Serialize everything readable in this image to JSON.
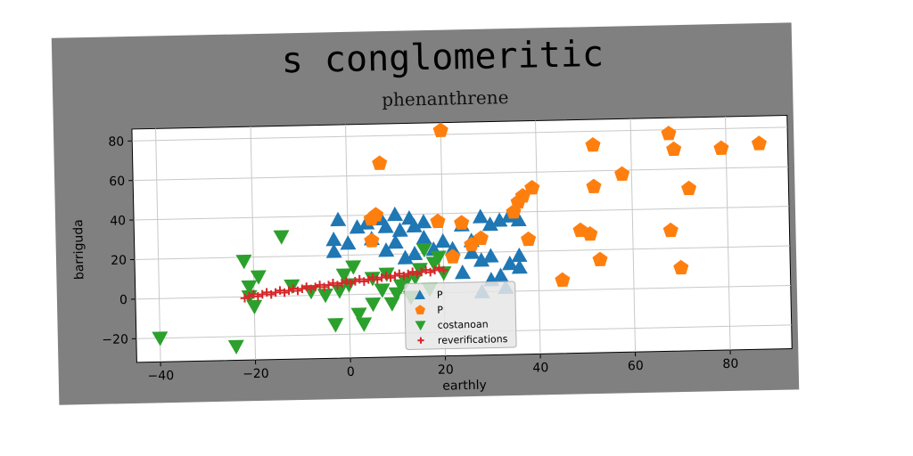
{
  "colors": {
    "figure_bg": "#808080",
    "plot_bg": "#ffffff",
    "grid": "#c8c8c8",
    "series_blue": "#1f77b4",
    "series_orange": "#ff7f0e",
    "series_green": "#2ca02c",
    "series_red": "#d62728"
  },
  "chart_data": {
    "type": "scatter",
    "title": "s conglomeritic",
    "subtitle": "phenanthrene",
    "xlabel": "earthly",
    "ylabel": "barriguda",
    "xlim": [
      -45,
      93
    ],
    "ylim": [
      -32,
      86
    ],
    "xticks": [
      -40,
      -20,
      0,
      20,
      40,
      60,
      80
    ],
    "yticks": [
      -20,
      0,
      20,
      40,
      60,
      80
    ],
    "grid": true,
    "legend_position": "lower-center",
    "series": [
      {
        "name": "P",
        "marker": "triangle-up",
        "color": "#1f77b4",
        "points": [
          [
            -2,
            38
          ],
          [
            -3,
            28
          ],
          [
            -3,
            22
          ],
          [
            0,
            26
          ],
          [
            2,
            34
          ],
          [
            4,
            36
          ],
          [
            5,
            28
          ],
          [
            7,
            38
          ],
          [
            8,
            34
          ],
          [
            10,
            40
          ],
          [
            11,
            32
          ],
          [
            13,
            38
          ],
          [
            14,
            34
          ],
          [
            16,
            36
          ],
          [
            18,
            22
          ],
          [
            20,
            26
          ],
          [
            24,
            34
          ],
          [
            26,
            26
          ],
          [
            28,
            38
          ],
          [
            30,
            34
          ],
          [
            32,
            36
          ],
          [
            34,
            38
          ],
          [
            36,
            36
          ],
          [
            8,
            22
          ],
          [
            10,
            26
          ],
          [
            12,
            18
          ],
          [
            14,
            20
          ],
          [
            16,
            28
          ],
          [
            22,
            22
          ],
          [
            26,
            20
          ],
          [
            28,
            16
          ],
          [
            30,
            18
          ],
          [
            34,
            14
          ],
          [
            36,
            18
          ],
          [
            36,
            12
          ],
          [
            24,
            10
          ],
          [
            30,
            6
          ],
          [
            33,
            2
          ],
          [
            28,
            0
          ],
          [
            32,
            8
          ]
        ]
      },
      {
        "name": "P",
        "marker": "pentagon",
        "color": "#ff7f0e",
        "points": [
          [
            7,
            66
          ],
          [
            20,
            82
          ],
          [
            5,
            38
          ],
          [
            6,
            40
          ],
          [
            5,
            27
          ],
          [
            19,
            36
          ],
          [
            24,
            35
          ],
          [
            26,
            24
          ],
          [
            28,
            27
          ],
          [
            22,
            18
          ],
          [
            36,
            45
          ],
          [
            37,
            48
          ],
          [
            39,
            52
          ],
          [
            35,
            40
          ],
          [
            38,
            26
          ],
          [
            45,
            5
          ],
          [
            49,
            30
          ],
          [
            51,
            28
          ],
          [
            52,
            52
          ],
          [
            52,
            73
          ],
          [
            53,
            15
          ],
          [
            58,
            58
          ],
          [
            68,
            78
          ],
          [
            69,
            70
          ],
          [
            68,
            29
          ],
          [
            70,
            10
          ],
          [
            72,
            50
          ],
          [
            79,
            70
          ],
          [
            87,
            72
          ]
        ]
      },
      {
        "name": "costanoan",
        "marker": "triangle-down",
        "color": "#2ca02c",
        "points": [
          [
            -40,
            -20
          ],
          [
            -24,
            -25
          ],
          [
            -22,
            18
          ],
          [
            -21,
            5
          ],
          [
            -21,
            0
          ],
          [
            -20,
            -5
          ],
          [
            -19,
            10
          ],
          [
            -14,
            30
          ],
          [
            -12,
            5
          ],
          [
            -8,
            2
          ],
          [
            -5,
            0
          ],
          [
            -3,
            -15
          ],
          [
            -2,
            2
          ],
          [
            -1,
            10
          ],
          [
            0,
            5
          ],
          [
            1,
            14
          ],
          [
            2,
            -10
          ],
          [
            3,
            -15
          ],
          [
            5,
            -5
          ],
          [
            5,
            8
          ],
          [
            7,
            2
          ],
          [
            8,
            10
          ],
          [
            9,
            -5
          ],
          [
            10,
            0
          ],
          [
            11,
            4
          ],
          [
            12,
            6
          ],
          [
            13,
            -2
          ],
          [
            14,
            8
          ],
          [
            15,
            12
          ],
          [
            16,
            22
          ],
          [
            17,
            2
          ],
          [
            18,
            15
          ],
          [
            19,
            18
          ],
          [
            20,
            10
          ]
        ]
      },
      {
        "name": "reverifications",
        "marker": "plus",
        "color": "#d62728",
        "line_x_range": [
          -22,
          20
        ],
        "line_y_range": [
          0,
          12
        ]
      }
    ]
  }
}
